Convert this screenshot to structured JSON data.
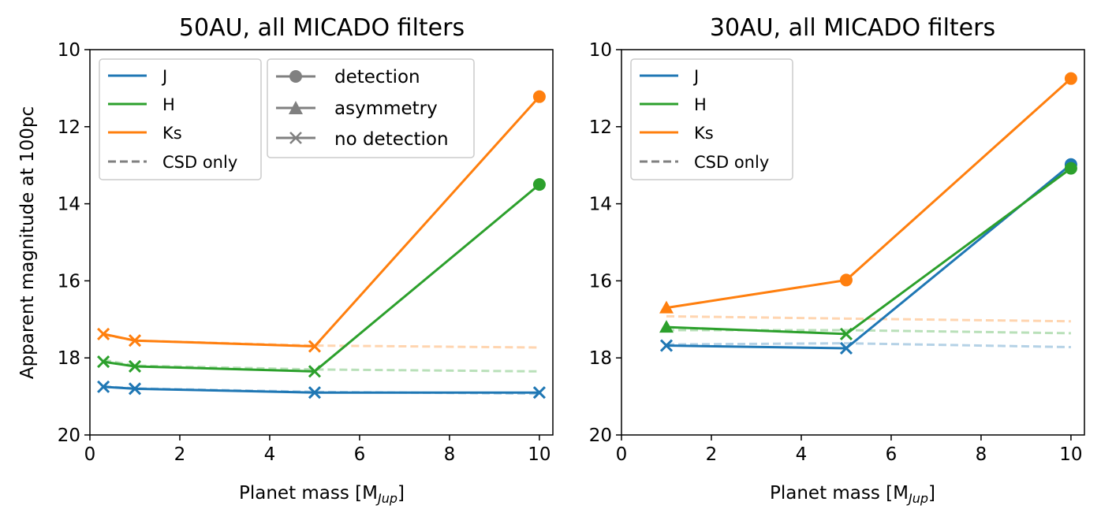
{
  "chart_data": [
    {
      "type": "line",
      "title": "50AU, all MICADO filters",
      "xlabel": "Planet mass [M",
      "xlabel_sub": "Jup",
      "xlabel_end": "]",
      "ylabel": "Apparent magnitude at 100pc",
      "xlim": [
        0,
        10.3
      ],
      "ylim": [
        20,
        10
      ],
      "yinverted": true,
      "xticks": [
        0,
        2,
        4,
        6,
        8,
        10
      ],
      "yticks": [
        10,
        12,
        14,
        16,
        18,
        20
      ],
      "colors": {
        "J": "#1f77b4",
        "H": "#2ca02c",
        "Ks": "#ff7f0e",
        "gray": "#808080"
      },
      "series": [
        {
          "name": "J",
          "x": [
            0.3,
            1,
            5,
            10
          ],
          "y": [
            18.75,
            18.8,
            18.9,
            18.9
          ],
          "markers": [
            "x",
            "x",
            "x",
            "x"
          ]
        },
        {
          "name": "H",
          "x": [
            0.3,
            1,
            5,
            10
          ],
          "y": [
            18.1,
            18.22,
            18.35,
            13.5
          ],
          "markers": [
            "x",
            "x",
            "x",
            "o"
          ]
        },
        {
          "name": "Ks",
          "x": [
            0.3,
            1,
            5,
            10
          ],
          "y": [
            17.38,
            17.55,
            17.7,
            11.22
          ],
          "markers": [
            "x",
            "x",
            "x",
            "o"
          ]
        }
      ],
      "csd_only": [
        {
          "name": "J",
          "x": [
            0.3,
            1,
            5,
            10
          ],
          "y": [
            18.74,
            18.79,
            18.88,
            18.93
          ]
        },
        {
          "name": "H",
          "x": [
            0.3,
            1,
            5,
            10
          ],
          "y": [
            18.05,
            18.2,
            18.3,
            18.35
          ]
        },
        {
          "name": "Ks",
          "x": [
            0.3,
            1,
            5,
            10
          ],
          "y": [
            17.4,
            17.55,
            17.68,
            17.73
          ]
        }
      ],
      "legend": {
        "lines": [
          "J",
          "H",
          "Ks",
          "CSD only"
        ],
        "markers": [
          "detection",
          "asymmetry",
          "no detection"
        ],
        "placement": "upper-left"
      }
    },
    {
      "type": "line",
      "title": "30AU, all MICADO filters",
      "xlabel": "Planet mass [M",
      "xlabel_sub": "Jup",
      "xlabel_end": "]",
      "xlim": [
        0,
        10.3
      ],
      "ylim": [
        20,
        10
      ],
      "yinverted": true,
      "xticks": [
        0,
        2,
        4,
        6,
        8,
        10
      ],
      "yticks": [
        10,
        12,
        14,
        16,
        18,
        20
      ],
      "series": [
        {
          "name": "J",
          "x": [
            1,
            5,
            10
          ],
          "y": [
            17.68,
            17.75,
            12.98
          ],
          "markers": [
            "x",
            "x",
            "o"
          ]
        },
        {
          "name": "H",
          "x": [
            1,
            5,
            10
          ],
          "y": [
            17.2,
            17.38,
            13.08
          ],
          "markers": [
            "^",
            "x",
            "o"
          ]
        },
        {
          "name": "Ks",
          "x": [
            1,
            5,
            10
          ],
          "y": [
            16.7,
            15.98,
            10.75
          ],
          "markers": [
            "^",
            "o",
            "o"
          ]
        }
      ],
      "csd_only": [
        {
          "name": "J",
          "x": [
            1,
            5,
            10
          ],
          "y": [
            17.65,
            17.62,
            17.72
          ]
        },
        {
          "name": "H",
          "x": [
            1,
            5,
            10
          ],
          "y": [
            17.28,
            17.28,
            17.36
          ]
        },
        {
          "name": "Ks",
          "x": [
            1,
            5,
            10
          ],
          "y": [
            16.92,
            16.98,
            17.05
          ]
        }
      ],
      "legend": {
        "lines": [
          "J",
          "H",
          "Ks",
          "CSD only"
        ],
        "placement": "upper-left"
      }
    }
  ]
}
